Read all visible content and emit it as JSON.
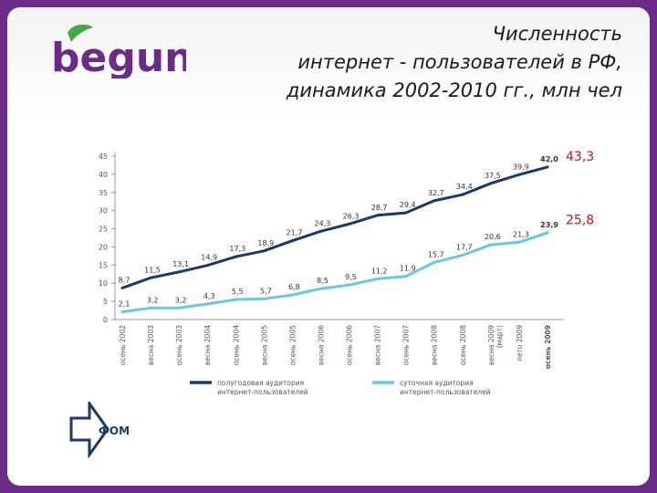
{
  "header": {
    "logo_text": "begun",
    "title_lines": [
      "Численность",
      "интернет - пользователей в РФ,",
      "динамика 2002-2010 гг., млн чел"
    ]
  },
  "footer": {
    "source_logo": "ФОМ"
  },
  "colors": {
    "background": "#6b2a86",
    "series_half_year": "#1c3a63",
    "series_daily": "#6cc8dd",
    "callout": "#c0161b",
    "logo_purple": "#6a2d86",
    "logo_leaf": "#45a843"
  },
  "chart_data": {
    "type": "line",
    "ylim": [
      0,
      45
    ],
    "y_ticks": [
      0,
      5,
      10,
      15,
      20,
      25,
      30,
      35,
      40,
      45
    ],
    "categories": [
      "осень 2002",
      "весна 2003",
      "осень 2003",
      "весна 2004",
      "осень 2004",
      "весна 2005",
      "осень 2005",
      "весна 2006",
      "осень 2006",
      "весна 2007",
      "осень 2007",
      "весна 2008",
      "осень 2008",
      "весна 2009 (март)",
      "лето 2009",
      "осень 2009"
    ],
    "series": [
      {
        "name": "полугодовая аудитория интернет-пользователей",
        "values": [
          8.7,
          11.5,
          13.1,
          14.9,
          17.3,
          18.9,
          21.7,
          24.3,
          26.3,
          28.7,
          29.4,
          32.7,
          34.4,
          37.5,
          39.9,
          42.0
        ],
        "labels": [
          "8,7",
          "11,5",
          "13,1",
          "14,9",
          "17,3",
          "18,9",
          "21,7",
          "24,3",
          "26,3",
          "28,7",
          "29,4",
          "32,7",
          "34,4",
          "37,5",
          "39,9",
          "42,0"
        ]
      },
      {
        "name": "суточная аудитория интернет-пользователей",
        "values": [
          2.1,
          3.2,
          3.2,
          4.3,
          5.5,
          5.7,
          6.8,
          8.5,
          9.5,
          11.2,
          11.9,
          15.7,
          17.7,
          20.6,
          21.3,
          23.9
        ],
        "labels": [
          "2,1",
          "3,2",
          "3,2",
          "4,3",
          "5,5",
          "5,7",
          "6,8",
          "8,5",
          "9,5",
          "11,2",
          "11,9",
          "15,7",
          "17,7",
          "20,6",
          "21,3",
          "23,9"
        ]
      }
    ],
    "annotations": [
      {
        "text": "43,3",
        "value": 43.3
      },
      {
        "text": "25,8",
        "value": 25.8
      }
    ]
  }
}
